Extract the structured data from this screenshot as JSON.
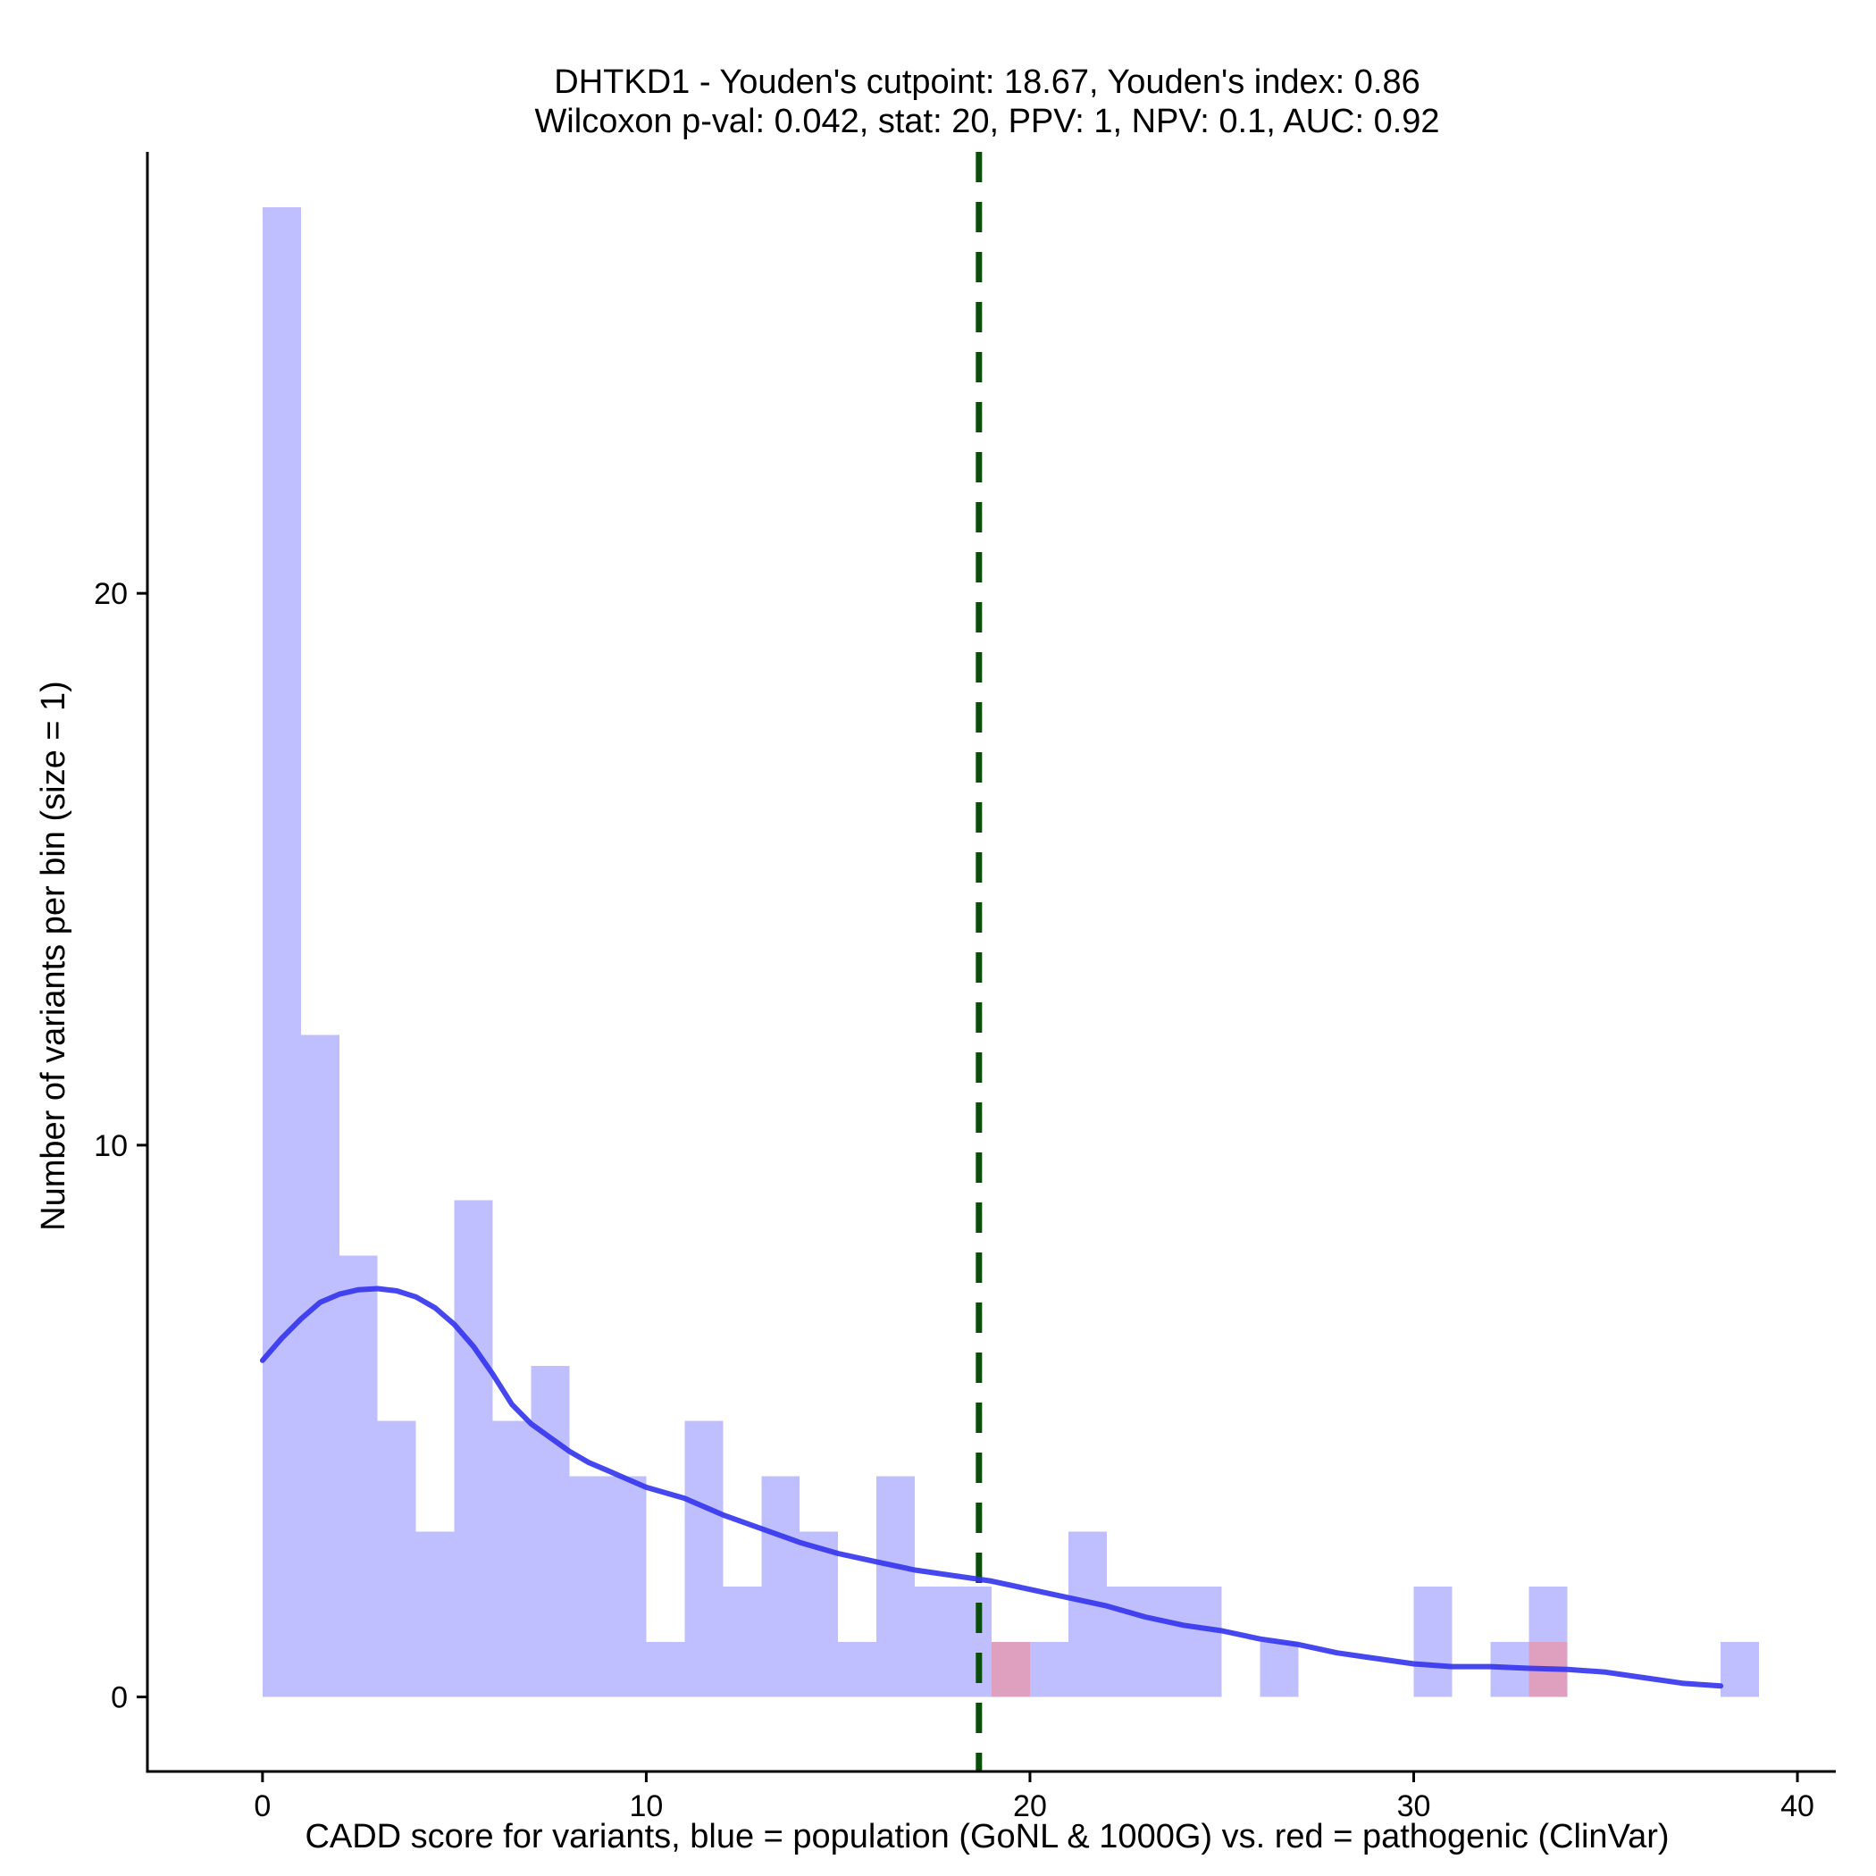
{
  "chart_data": {
    "type": "histogram",
    "title": "DHTKD1 - Youden's cutpoint: 18.67, Youden's index: 0.86",
    "subtitle": "Wilcoxon p-val: 0.042, stat: 20, PPV: 1, NPV: 0.1, AUC: 0.92",
    "xlabel": "CADD score for variants, blue = population (GoNL & 1000G) vs. red = pathogenic (ClinVar)",
    "ylabel": "Number of variants per bin (size = 1)",
    "xlim": [
      -3,
      41
    ],
    "ylim": [
      -1.35,
      28
    ],
    "xticks": [
      0,
      10,
      20,
      30,
      40
    ],
    "yticks": [
      0,
      10,
      20
    ],
    "bin_width": 1,
    "cutpoint": 18.67,
    "series": [
      {
        "name": "population (GoNL & 1000G)",
        "color": "#8080ff",
        "opacity": 0.5,
        "bins": [
          {
            "x": 0,
            "count": 27
          },
          {
            "x": 1,
            "count": 12
          },
          {
            "x": 2,
            "count": 8
          },
          {
            "x": 3,
            "count": 5
          },
          {
            "x": 4,
            "count": 3
          },
          {
            "x": 5,
            "count": 9
          },
          {
            "x": 6,
            "count": 5
          },
          {
            "x": 7,
            "count": 6
          },
          {
            "x": 8,
            "count": 4
          },
          {
            "x": 9,
            "count": 4
          },
          {
            "x": 10,
            "count": 1
          },
          {
            "x": 11,
            "count": 5
          },
          {
            "x": 12,
            "count": 2
          },
          {
            "x": 13,
            "count": 4
          },
          {
            "x": 14,
            "count": 3
          },
          {
            "x": 15,
            "count": 1
          },
          {
            "x": 16,
            "count": 4
          },
          {
            "x": 17,
            "count": 2
          },
          {
            "x": 18,
            "count": 2
          },
          {
            "x": 19,
            "count": 1
          },
          {
            "x": 20,
            "count": 1
          },
          {
            "x": 21,
            "count": 3
          },
          {
            "x": 22,
            "count": 2
          },
          {
            "x": 23,
            "count": 2
          },
          {
            "x": 24,
            "count": 2
          },
          {
            "x": 26,
            "count": 1
          },
          {
            "x": 30,
            "count": 2
          },
          {
            "x": 32,
            "count": 1
          },
          {
            "x": 33,
            "count": 2
          },
          {
            "x": 38,
            "count": 1
          }
        ]
      },
      {
        "name": "pathogenic (ClinVar)",
        "color": "#ff8080",
        "opacity": 0.5,
        "bins": [
          {
            "x": 19,
            "count": 1
          },
          {
            "x": 33,
            "count": 1
          }
        ]
      }
    ],
    "density_curve": {
      "color": "#3333ee",
      "x": [
        0,
        0.5,
        1,
        1.5,
        2,
        2.5,
        3,
        3.5,
        4,
        4.5,
        5,
        5.5,
        6,
        6.5,
        7,
        7.5,
        8,
        8.5,
        9,
        9.5,
        10,
        11,
        12,
        13,
        14,
        15,
        16,
        17,
        18,
        19,
        20,
        21,
        22,
        23,
        24,
        25,
        26,
        27,
        28,
        29,
        30,
        31,
        32,
        33,
        34,
        35,
        36,
        37,
        38
      ],
      "y": [
        6.1,
        6.5,
        6.85,
        7.15,
        7.3,
        7.38,
        7.4,
        7.36,
        7.25,
        7.05,
        6.75,
        6.35,
        5.85,
        5.3,
        4.95,
        4.7,
        4.45,
        4.25,
        4.1,
        3.95,
        3.8,
        3.6,
        3.3,
        3.05,
        2.8,
        2.6,
        2.45,
        2.3,
        2.2,
        2.1,
        1.95,
        1.8,
        1.65,
        1.45,
        1.3,
        1.2,
        1.05,
        0.95,
        0.8,
        0.7,
        0.6,
        0.55,
        0.55,
        0.52,
        0.5,
        0.45,
        0.35,
        0.25,
        0.2
      ]
    }
  }
}
